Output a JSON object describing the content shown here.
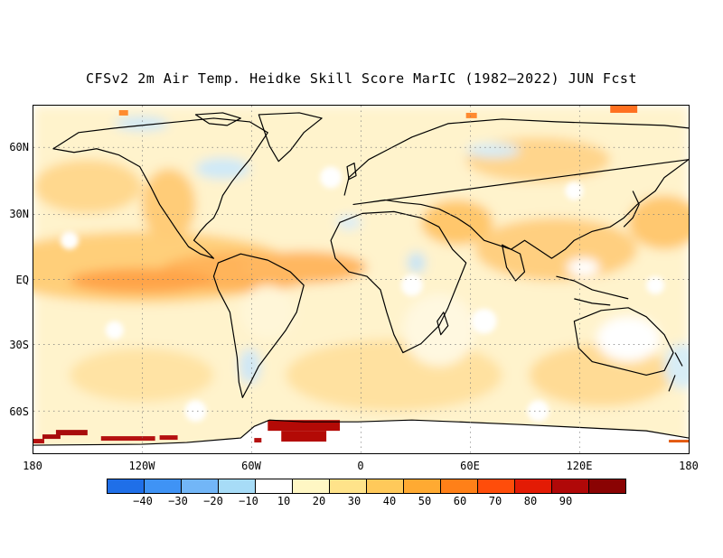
{
  "title": "CFSv2 2m Air Temp. Heidke Skill Score MarIC (1982–2022) JUN Fcst",
  "map": {
    "lon_range": [
      -180,
      180
    ],
    "lat_range": [
      -78,
      78
    ],
    "lat_ticks": [
      "60N",
      "30N",
      "EQ",
      "30S",
      "60S"
    ],
    "lon_ticks": [
      "180",
      "120W",
      "60W",
      "0",
      "60E",
      "120E",
      "180"
    ],
    "grid": "dotted",
    "highlights": [
      {
        "region": "Antarctic coast near Weddell Sea",
        "level": 90
      },
      {
        "region": "Antarctic coast near 150W",
        "level": 80
      },
      {
        "region": "Tropical Pacific / Atlantic",
        "level": 40
      }
    ]
  },
  "colorbar": {
    "labels": [
      "−40",
      "−30",
      "−20",
      "−10",
      "10",
      "20",
      "30",
      "40",
      "50",
      "60",
      "70",
      "80",
      "90"
    ],
    "colors": [
      "#1f6fe8",
      "#3f93f5",
      "#72b6f7",
      "#a7dcf7",
      "#ffffff",
      "#fff7c4",
      "#ffe38a",
      "#ffc95a",
      "#ffaa32",
      "#ff8018",
      "#ff4d0a",
      "#e31b05",
      "#b00808",
      "#8a0303"
    ]
  }
}
